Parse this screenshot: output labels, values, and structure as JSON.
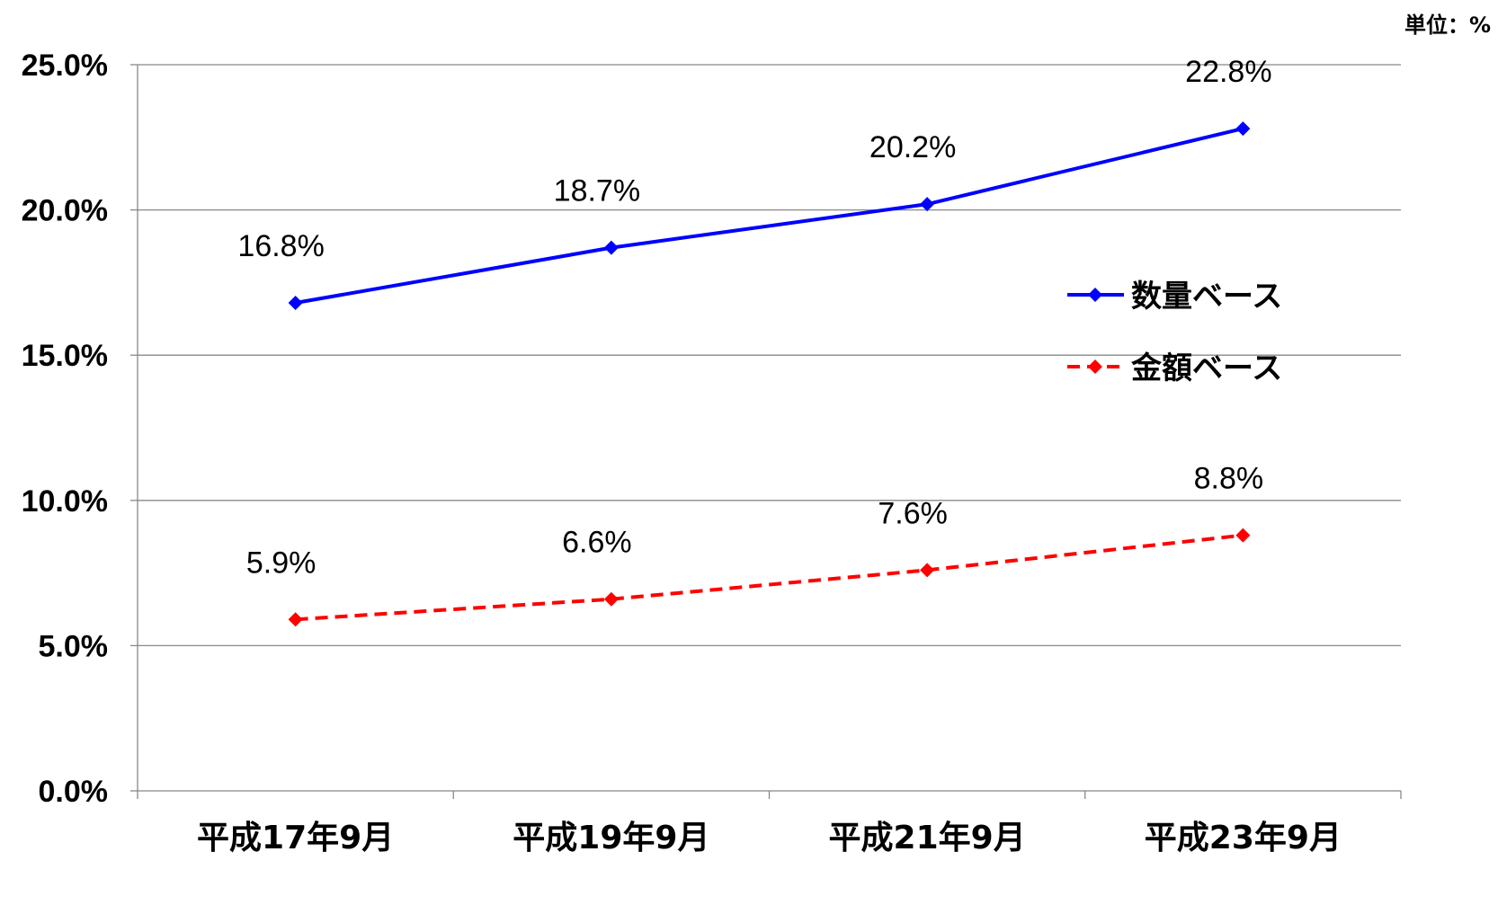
{
  "chart_data": {
    "type": "line",
    "unit_label": "単位：%",
    "categories": [
      "平成17年9月",
      "平成19年9月",
      "平成21年9月",
      "平成23年9月"
    ],
    "y_ticks": [
      "0.0%",
      "5.0%",
      "10.0%",
      "15.0%",
      "20.0%",
      "25.0%"
    ],
    "ylim": [
      0,
      25
    ],
    "grid": true,
    "legend_position": "right",
    "series": [
      {
        "name": "数量ベース",
        "values": [
          16.8,
          18.7,
          20.2,
          22.8
        ],
        "labels": [
          "16.8%",
          "18.7%",
          "20.2%",
          "22.8%"
        ],
        "color": "#0000ff",
        "line_style": "solid",
        "marker": "diamond"
      },
      {
        "name": "金額ベース",
        "values": [
          5.9,
          6.6,
          7.6,
          8.8
        ],
        "labels": [
          "5.9%",
          "6.6%",
          "7.6%",
          "8.8%"
        ],
        "color": "#ff0000",
        "line_style": "dashed",
        "marker": "diamond"
      }
    ]
  }
}
